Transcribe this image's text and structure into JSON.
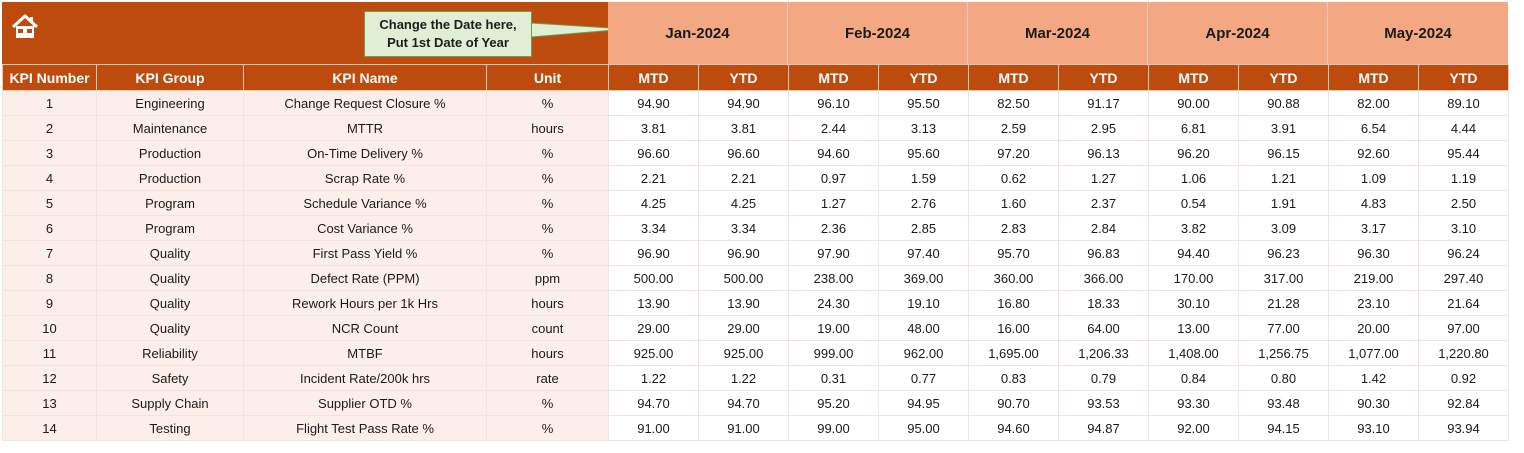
{
  "header": {
    "home_icon": "home-icon",
    "callout_line1": "Change the Date here,",
    "callout_line2": "Put 1st Date of Year",
    "months": [
      "Jan-2024",
      "Feb-2024",
      "Mar-2024",
      "Apr-2024",
      "May-2024"
    ]
  },
  "columns": {
    "kpi_number": "KPI Number",
    "kpi_group": "KPI Group",
    "kpi_name": "KPI Name",
    "unit": "Unit",
    "mtd": "MTD",
    "ytd": "YTD"
  },
  "colors": {
    "header_dark": "#bd4b0e",
    "header_light": "#f3a883",
    "info_fill": "#fcefe9",
    "callout_fill": "#dfeed5"
  },
  "rows": [
    {
      "num": "1",
      "group": "Engineering",
      "name": "Change Request Closure %",
      "unit": "%",
      "values": [
        "94.90",
        "94.90",
        "96.10",
        "95.50",
        "82.50",
        "91.17",
        "90.00",
        "90.88",
        "82.00",
        "89.10"
      ]
    },
    {
      "num": "2",
      "group": "Maintenance",
      "name": "MTTR",
      "unit": "hours",
      "values": [
        "3.81",
        "3.81",
        "2.44",
        "3.13",
        "2.59",
        "2.95",
        "6.81",
        "3.91",
        "6.54",
        "4.44"
      ]
    },
    {
      "num": "3",
      "group": "Production",
      "name": "On-Time Delivery %",
      "unit": "%",
      "values": [
        "96.60",
        "96.60",
        "94.60",
        "95.60",
        "97.20",
        "96.13",
        "96.20",
        "96.15",
        "92.60",
        "95.44"
      ]
    },
    {
      "num": "4",
      "group": "Production",
      "name": "Scrap Rate %",
      "unit": "%",
      "values": [
        "2.21",
        "2.21",
        "0.97",
        "1.59",
        "0.62",
        "1.27",
        "1.06",
        "1.21",
        "1.09",
        "1.19"
      ]
    },
    {
      "num": "5",
      "group": "Program",
      "name": "Schedule Variance %",
      "unit": "%",
      "values": [
        "4.25",
        "4.25",
        "1.27",
        "2.76",
        "1.60",
        "2.37",
        "0.54",
        "1.91",
        "4.83",
        "2.50"
      ]
    },
    {
      "num": "6",
      "group": "Program",
      "name": "Cost Variance %",
      "unit": "%",
      "values": [
        "3.34",
        "3.34",
        "2.36",
        "2.85",
        "2.83",
        "2.84",
        "3.82",
        "3.09",
        "3.17",
        "3.10"
      ]
    },
    {
      "num": "7",
      "group": "Quality",
      "name": "First Pass Yield %",
      "unit": "%",
      "values": [
        "96.90",
        "96.90",
        "97.90",
        "97.40",
        "95.70",
        "96.83",
        "94.40",
        "96.23",
        "96.30",
        "96.24"
      ]
    },
    {
      "num": "8",
      "group": "Quality",
      "name": "Defect Rate (PPM)",
      "unit": "ppm",
      "values": [
        "500.00",
        "500.00",
        "238.00",
        "369.00",
        "360.00",
        "366.00",
        "170.00",
        "317.00",
        "219.00",
        "297.40"
      ]
    },
    {
      "num": "9",
      "group": "Quality",
      "name": "Rework Hours per 1k Hrs",
      "unit": "hours",
      "values": [
        "13.90",
        "13.90",
        "24.30",
        "19.10",
        "16.80",
        "18.33",
        "30.10",
        "21.28",
        "23.10",
        "21.64"
      ]
    },
    {
      "num": "10",
      "group": "Quality",
      "name": "NCR Count",
      "unit": "count",
      "values": [
        "29.00",
        "29.00",
        "19.00",
        "48.00",
        "16.00",
        "64.00",
        "13.00",
        "77.00",
        "20.00",
        "97.00"
      ]
    },
    {
      "num": "11",
      "group": "Reliability",
      "name": "MTBF",
      "unit": "hours",
      "values": [
        "925.00",
        "925.00",
        "999.00",
        "962.00",
        "1,695.00",
        "1,206.33",
        "1,408.00",
        "1,256.75",
        "1,077.00",
        "1,220.80"
      ]
    },
    {
      "num": "12",
      "group": "Safety",
      "name": "Incident Rate/200k hrs",
      "unit": "rate",
      "values": [
        "1.22",
        "1.22",
        "0.31",
        "0.77",
        "0.83",
        "0.79",
        "0.84",
        "0.80",
        "1.42",
        "0.92"
      ]
    },
    {
      "num": "13",
      "group": "Supply Chain",
      "name": "Supplier OTD %",
      "unit": "%",
      "values": [
        "94.70",
        "94.70",
        "95.20",
        "94.95",
        "90.70",
        "93.53",
        "93.30",
        "93.48",
        "90.30",
        "92.84"
      ]
    },
    {
      "num": "14",
      "group": "Testing",
      "name": "Flight Test Pass Rate %",
      "unit": "%",
      "values": [
        "91.00",
        "91.00",
        "99.00",
        "95.00",
        "94.60",
        "94.87",
        "92.00",
        "94.15",
        "93.10",
        "93.94"
      ]
    }
  ]
}
